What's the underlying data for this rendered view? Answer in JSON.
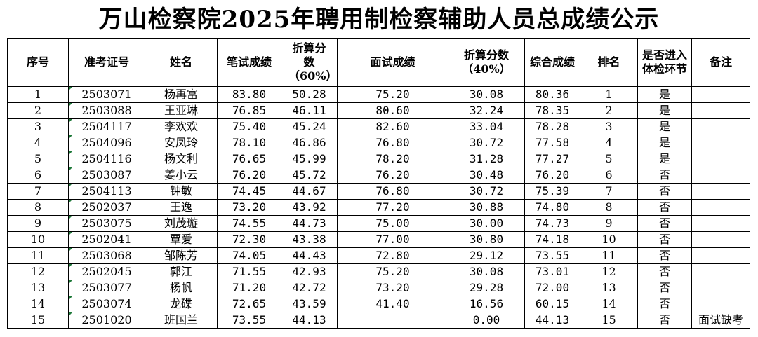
{
  "title": "万山检察院2025年聘用制检察辅助人员总成绩公示",
  "columns": [
    "序号",
    "准考证号",
    "姓名",
    "笔试成绩",
    "折算分数（60%）",
    "面试成绩",
    "折算分数（40%）",
    "综合成绩",
    "排名",
    "是否进入体检环节",
    "备注"
  ],
  "rows": [
    {
      "no": "1",
      "id": "2503071",
      "name": "杨再富",
      "written": "83.80",
      "written60": "50.28",
      "interview": "75.20",
      "interview40": "30.08",
      "total": "80.36",
      "rank": "1",
      "exam": "是",
      "note": ""
    },
    {
      "no": "2",
      "id": "2503088",
      "name": "王亚琳",
      "written": "76.85",
      "written60": "46.11",
      "interview": "80.60",
      "interview40": "32.24",
      "total": "78.35",
      "rank": "2",
      "exam": "是",
      "note": ""
    },
    {
      "no": "3",
      "id": "2504117",
      "name": "李欢欢",
      "written": "75.40",
      "written60": "45.24",
      "interview": "82.60",
      "interview40": "33.04",
      "total": "78.28",
      "rank": "3",
      "exam": "是",
      "note": ""
    },
    {
      "no": "4",
      "id": "2504096",
      "name": "安凤玲",
      "written": "78.10",
      "written60": "46.86",
      "interview": "76.80",
      "interview40": "30.72",
      "total": "77.58",
      "rank": "4",
      "exam": "是",
      "note": ""
    },
    {
      "no": "5",
      "id": "2504116",
      "name": "杨文利",
      "written": "76.65",
      "written60": "45.99",
      "interview": "78.20",
      "interview40": "31.28",
      "total": "77.27",
      "rank": "5",
      "exam": "是",
      "note": ""
    },
    {
      "no": "6",
      "id": "2503087",
      "name": "姜小云",
      "written": "76.20",
      "written60": "45.72",
      "interview": "76.20",
      "interview40": "30.48",
      "total": "76.20",
      "rank": "6",
      "exam": "否",
      "note": ""
    },
    {
      "no": "7",
      "id": "2504113",
      "name": "钟敏",
      "written": "74.45",
      "written60": "44.67",
      "interview": "76.80",
      "interview40": "30.72",
      "total": "75.39",
      "rank": "7",
      "exam": "否",
      "note": ""
    },
    {
      "no": "8",
      "id": "2502037",
      "name": "王逸",
      "written": "73.20",
      "written60": "43.92",
      "interview": "77.20",
      "interview40": "30.88",
      "total": "74.80",
      "rank": "8",
      "exam": "否",
      "note": ""
    },
    {
      "no": "9",
      "id": "2503075",
      "name": "刘茂璇",
      "written": "74.55",
      "written60": "44.73",
      "interview": "75.00",
      "interview40": "30.00",
      "total": "74.73",
      "rank": "9",
      "exam": "否",
      "note": ""
    },
    {
      "no": "10",
      "id": "2502041",
      "name": "覃爱",
      "written": "72.30",
      "written60": "43.38",
      "interview": "77.00",
      "interview40": "30.80",
      "total": "74.18",
      "rank": "10",
      "exam": "否",
      "note": ""
    },
    {
      "no": "11",
      "id": "2503068",
      "name": "邹陈芳",
      "written": "74.05",
      "written60": "44.43",
      "interview": "72.80",
      "interview40": "29.12",
      "total": "73.55",
      "rank": "11",
      "exam": "否",
      "note": ""
    },
    {
      "no": "12",
      "id": "2502045",
      "name": "郭江",
      "written": "71.55",
      "written60": "42.93",
      "interview": "75.20",
      "interview40": "30.08",
      "total": "73.01",
      "rank": "12",
      "exam": "否",
      "note": ""
    },
    {
      "no": "13",
      "id": "2503077",
      "name": "杨帆",
      "written": "71.20",
      "written60": "42.72",
      "interview": "73.20",
      "interview40": "29.28",
      "total": "72.00",
      "rank": "13",
      "exam": "否",
      "note": ""
    },
    {
      "no": "14",
      "id": "2503074",
      "name": "龙碟",
      "written": "72.65",
      "written60": "43.59",
      "interview": "41.40",
      "interview40": "16.56",
      "total": "60.15",
      "rank": "14",
      "exam": "否",
      "note": ""
    },
    {
      "no": "15",
      "id": "2501020",
      "name": "班国兰",
      "written": "73.55",
      "written60": "44.13",
      "interview": "",
      "interview40": "0.00",
      "total": "44.13",
      "rank": "15",
      "exam": "否",
      "note": "面试缺考"
    }
  ]
}
